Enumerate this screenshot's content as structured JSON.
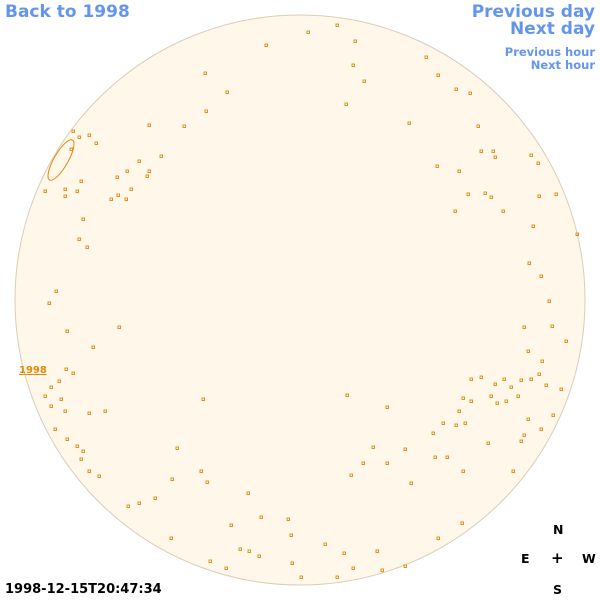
{
  "nav": {
    "back_label": "Back to 1998",
    "previous_day_label": "Previous day",
    "next_day_label": "Next day",
    "previous_hour_label": "Previous hour",
    "next_hour_label": "Next hour"
  },
  "sky": {
    "year_link_label": "1998",
    "timestamp": "1998-12-15T20:47:34",
    "disk_fill": "#fff8ea",
    "marker_color": "#e0890a"
  },
  "compass": {
    "north": "N",
    "east": "E",
    "center": "+",
    "west": "W",
    "south": "S"
  }
}
